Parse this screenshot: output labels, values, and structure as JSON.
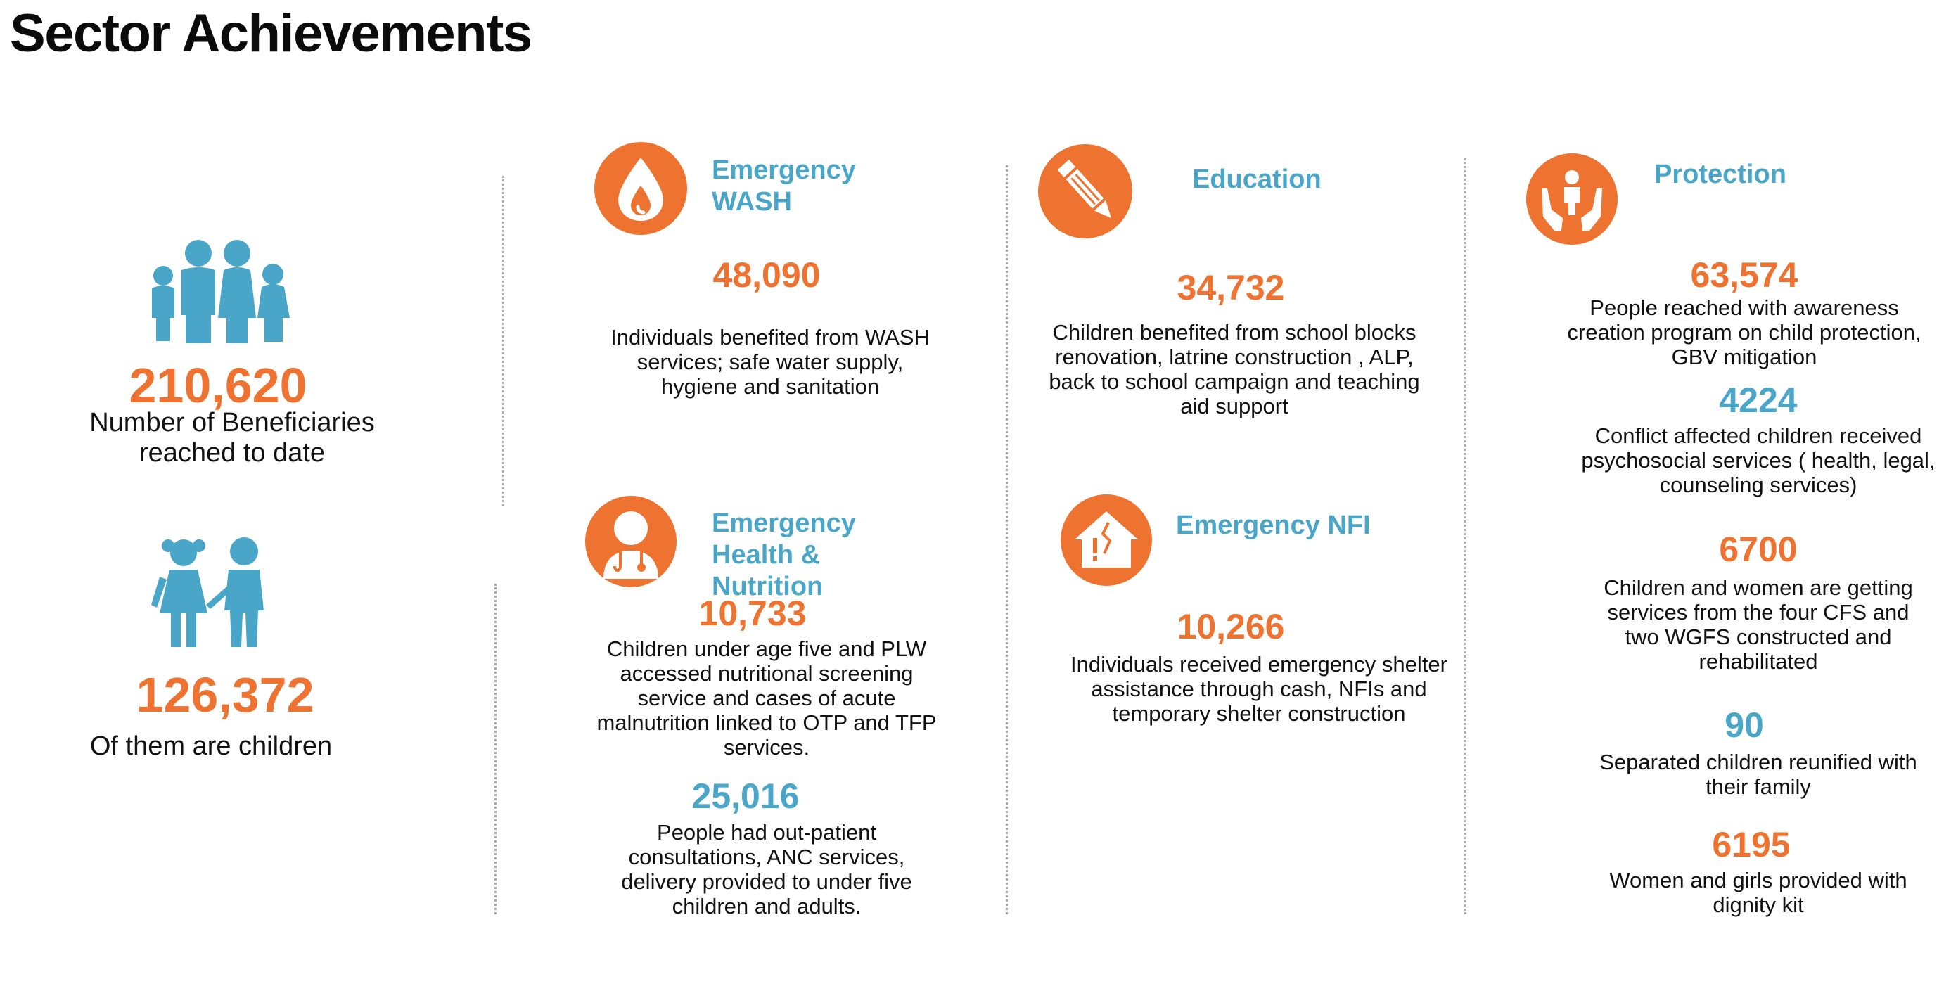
{
  "title": "Sector Achievements",
  "colors": {
    "orange": "#ee7330",
    "blue": "#4aa6c8",
    "divider": "#a9a9a9"
  },
  "summary": {
    "beneficiaries": {
      "value": "210,620",
      "label": "Number of Beneficiaries reached to date",
      "icon": "family-icon"
    },
    "children": {
      "value": "126,372",
      "label": "Of them are children",
      "icon": "children-icon"
    }
  },
  "sectors": {
    "wash": {
      "heading": "Emergency WASH",
      "icon": "water-drop-icon",
      "stats": [
        {
          "value": "48,090",
          "text": "Individuals benefited from WASH services; safe water supply, hygiene and sanitation"
        }
      ]
    },
    "education": {
      "heading": "Education",
      "icon": "pencil-icon",
      "stats": [
        {
          "value": "34,732",
          "text": "Children benefited from school blocks renovation, latrine construction , ALP, back to school campaign and teaching aid support"
        }
      ]
    },
    "protection": {
      "heading": "Protection",
      "icon": "protecting-hands-icon",
      "stats": [
        {
          "value": "63,574",
          "text": "People reached with awareness creation program on child protection, GBV mitigation"
        },
        {
          "value": "4224",
          "text": "Conflict affected children received psychosocial services ( health, legal, counseling services)"
        },
        {
          "value": "6700",
          "text": "Children and women are getting services from the four CFS and two WGFS constructed and rehabilitated"
        },
        {
          "value": "90",
          "text": "Separated children reunified with their family"
        },
        {
          "value": "6195",
          "text": "Women and girls provided with dignity kit"
        }
      ]
    },
    "health": {
      "heading": "Emergency Health & Nutrition",
      "icon": "doctor-icon",
      "stats": [
        {
          "value": "10,733",
          "text": "Children under age five and PLW accessed nutritional screening service and cases of acute malnutrition linked to OTP and TFP services."
        },
        {
          "value": "25,016",
          "text": "People had out-patient consultations, ANC services, delivery provided to under five children and adults."
        }
      ]
    },
    "nfi": {
      "heading": "Emergency NFI",
      "icon": "damaged-house-icon",
      "stats": [
        {
          "value": "10,266",
          "text": "Individuals received emergency shelter assistance through cash, NFIs and temporary shelter construction"
        }
      ]
    }
  }
}
